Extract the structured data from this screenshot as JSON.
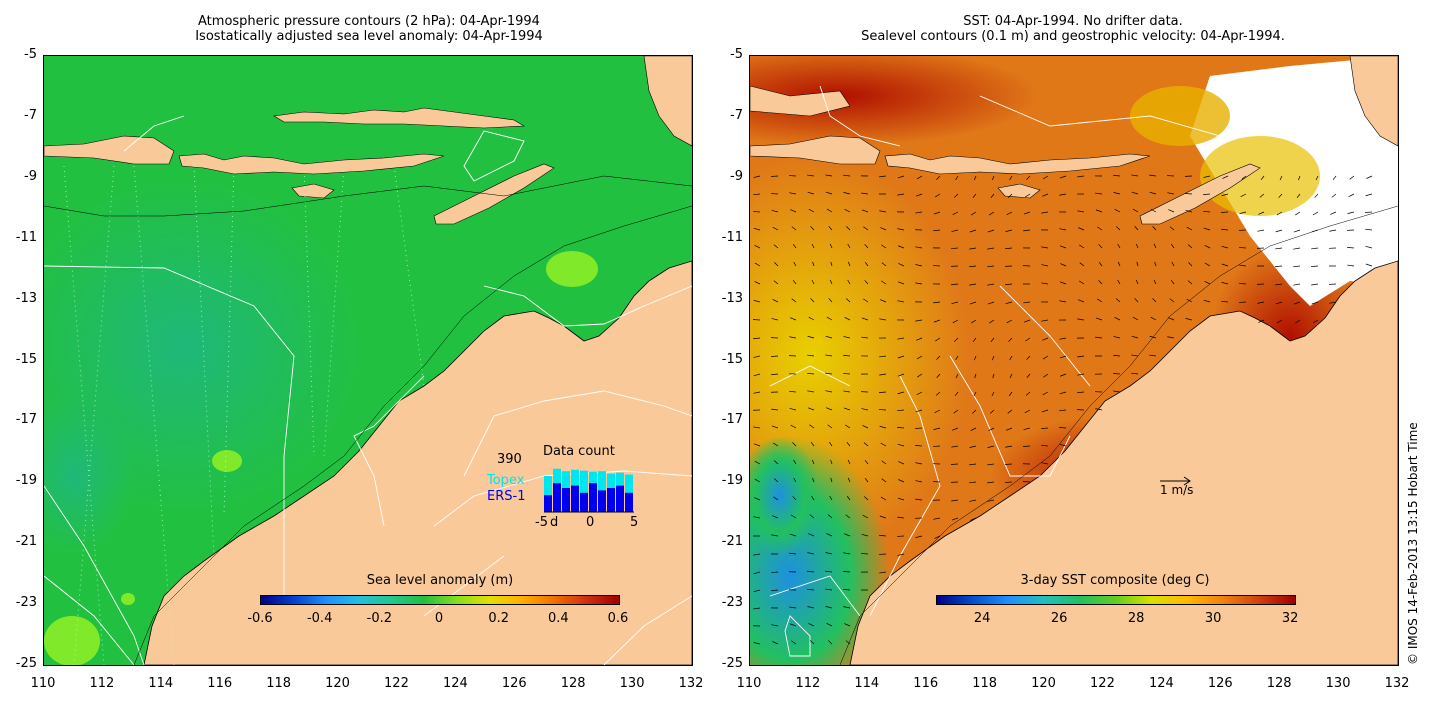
{
  "left_panel": {
    "title_line1": "Atmospheric pressure contours (2 hPa): 04-Apr-1994",
    "title_line2": "Isostatically adjusted sea level anomaly: 04-Apr-1994",
    "lat_ticks": [
      "-5",
      "-7",
      "-9",
      "-11",
      "-13",
      "-15",
      "-17",
      "-19",
      "-21",
      "-23",
      "-25"
    ],
    "lon_ticks": [
      "110",
      "112",
      "114",
      "116",
      "118",
      "120",
      "122",
      "124",
      "126",
      "128",
      "130",
      "132"
    ],
    "colorbar": {
      "title": "Sea level anomaly (m)",
      "ticks": [
        "-0.6",
        "-0.4",
        "-0.2",
        "0",
        "0.2",
        "0.4",
        "0.6"
      ]
    },
    "data_count": {
      "title": "Data count",
      "max_label": "390",
      "series": [
        {
          "name": "Topex",
          "color": "#00e5ee"
        },
        {
          "name": "ERS-1",
          "color": "#0000ee"
        }
      ],
      "x_ticks": [
        "-5",
        "0",
        "5"
      ],
      "day_label": "d"
    }
  },
  "right_panel": {
    "title_line1": "SST: 04-Apr-1994. No drifter data.",
    "title_line2": "Sealevel contours (0.1 m) and geostrophic velocity: 04-Apr-1994.",
    "lat_ticks": [
      "-5",
      "-7",
      "-9",
      "-11",
      "-13",
      "-15",
      "-17",
      "-19",
      "-21",
      "-23",
      "-25"
    ],
    "lon_ticks": [
      "110",
      "112",
      "114",
      "116",
      "118",
      "120",
      "122",
      "124",
      "126",
      "128",
      "130",
      "132"
    ],
    "colorbar": {
      "title": "3-day SST composite (deg C)",
      "ticks": [
        "24",
        "26",
        "28",
        "30",
        "32"
      ]
    },
    "velocity_scale_label": "1 m/s"
  },
  "credit": "© IMOS 14-Feb-2013 13:15 Hobart Time",
  "colors": {
    "land": "#f9c99a",
    "ocean_sla": "#22c82a",
    "sst_warm": "#d85a10"
  }
}
